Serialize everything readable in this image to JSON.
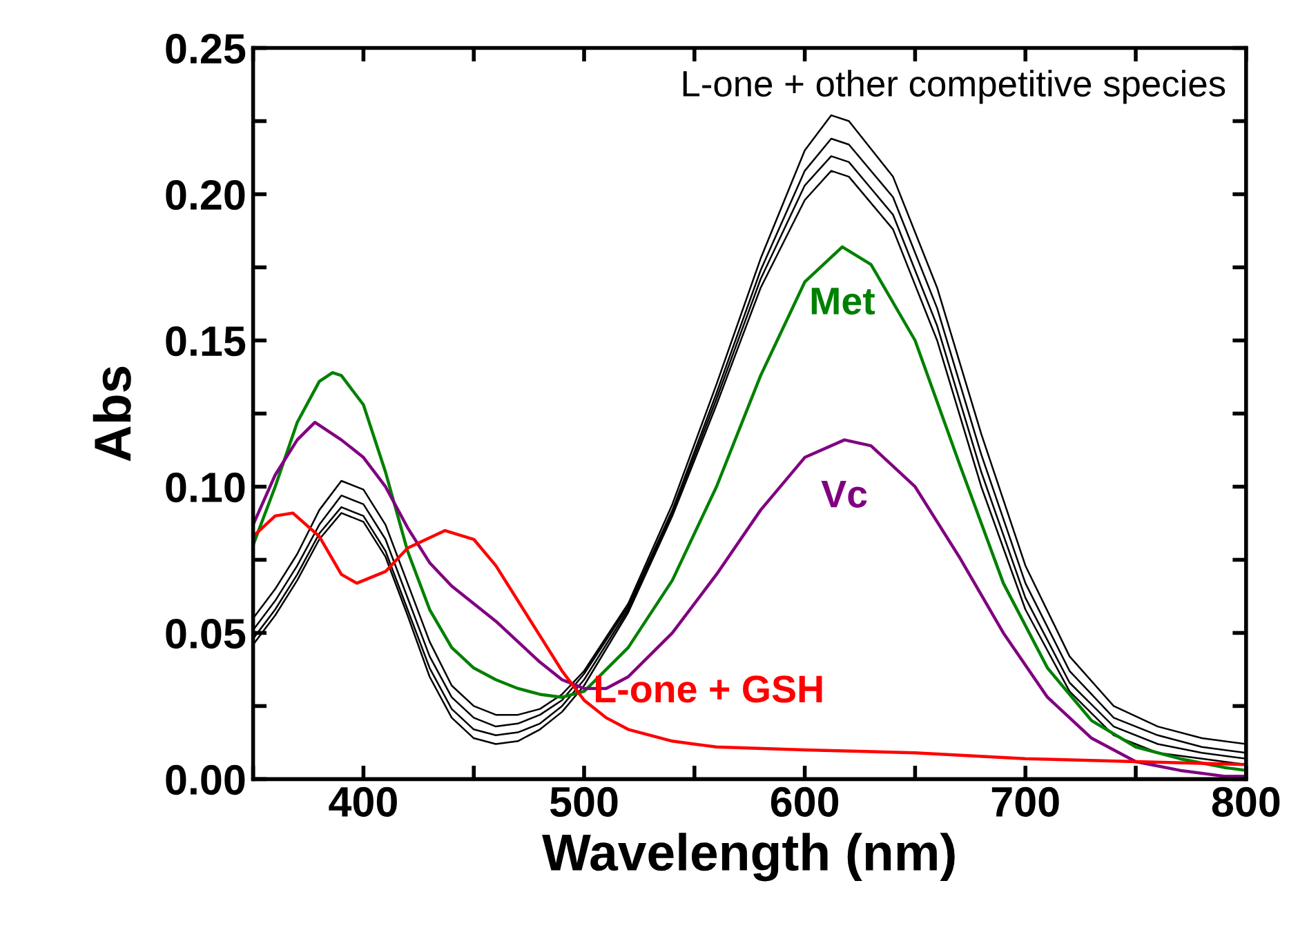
{
  "chart_data": {
    "type": "line",
    "xlabel": "Wavelength (nm)",
    "ylabel": "Abs",
    "xlim": [
      350,
      800
    ],
    "ylim": [
      0,
      0.25
    ],
    "xticks": [
      {
        "value": 350,
        "label": null
      },
      400,
      {
        "value": 450,
        "label": null
      },
      500,
      {
        "value": 550,
        "label": null
      },
      600,
      {
        "value": 650,
        "label": null
      },
      700,
      {
        "value": 750,
        "label": null
      },
      800
    ],
    "yticks": [
      {
        "value": 0,
        "label": "0.00"
      },
      {
        "value": 0.025,
        "label": null
      },
      {
        "value": 0.05,
        "label": "0.05"
      },
      {
        "value": 0.075,
        "label": null
      },
      {
        "value": 0.1,
        "label": "0.10"
      },
      {
        "value": 0.125,
        "label": null
      },
      {
        "value": 0.15,
        "label": "0.15"
      },
      {
        "value": 0.175,
        "label": null
      },
      {
        "value": 0.2,
        "label": "0.20"
      },
      {
        "value": 0.225,
        "label": null
      },
      {
        "value": 0.25,
        "label": "0.25"
      }
    ],
    "grid": false,
    "legend": false,
    "marker": "none",
    "line_style": "solid",
    "series": [
      {
        "color": "#000000",
        "x": [
          350,
          360,
          370,
          380,
          390,
          400,
          410,
          420,
          430,
          440,
          450,
          460,
          470,
          480,
          490,
          500,
          520,
          540,
          560,
          580,
          600,
          612,
          620,
          640,
          660,
          680,
          700,
          720,
          740,
          760,
          780,
          800
        ],
        "values": [
          0.046,
          0.056,
          0.068,
          0.082,
          0.091,
          0.088,
          0.076,
          0.056,
          0.035,
          0.021,
          0.014,
          0.012,
          0.013,
          0.017,
          0.023,
          0.032,
          0.057,
          0.09,
          0.128,
          0.168,
          0.198,
          0.208,
          0.206,
          0.188,
          0.15,
          0.1,
          0.058,
          0.03,
          0.015,
          0.009,
          0.007,
          0.005
        ]
      },
      {
        "color": "#000000",
        "x": [
          350,
          360,
          370,
          380,
          390,
          400,
          410,
          420,
          430,
          440,
          450,
          460,
          470,
          480,
          490,
          500,
          520,
          540,
          560,
          580,
          600,
          612,
          620,
          640,
          660,
          680,
          700,
          720,
          740,
          760,
          780,
          800
        ],
        "values": [
          0.048,
          0.058,
          0.07,
          0.084,
          0.093,
          0.09,
          0.078,
          0.058,
          0.038,
          0.024,
          0.017,
          0.015,
          0.016,
          0.019,
          0.025,
          0.034,
          0.058,
          0.091,
          0.13,
          0.171,
          0.203,
          0.213,
          0.211,
          0.193,
          0.155,
          0.105,
          0.062,
          0.033,
          0.018,
          0.012,
          0.009,
          0.007
        ]
      },
      {
        "color": "#000000",
        "x": [
          350,
          360,
          370,
          380,
          390,
          400,
          410,
          420,
          430,
          440,
          450,
          460,
          470,
          480,
          490,
          500,
          520,
          540,
          560,
          580,
          600,
          612,
          620,
          640,
          660,
          680,
          700,
          720,
          740,
          760,
          780,
          800
        ],
        "values": [
          0.051,
          0.061,
          0.073,
          0.087,
          0.097,
          0.094,
          0.082,
          0.062,
          0.042,
          0.028,
          0.021,
          0.018,
          0.019,
          0.022,
          0.027,
          0.036,
          0.059,
          0.092,
          0.132,
          0.174,
          0.208,
          0.219,
          0.217,
          0.199,
          0.161,
          0.111,
          0.067,
          0.037,
          0.021,
          0.015,
          0.011,
          0.009
        ]
      },
      {
        "color": "#000000",
        "x": [
          350,
          360,
          370,
          380,
          390,
          400,
          410,
          420,
          430,
          440,
          450,
          460,
          470,
          480,
          490,
          500,
          520,
          540,
          560,
          580,
          600,
          612,
          620,
          640,
          660,
          680,
          700,
          720,
          740,
          760,
          780,
          800
        ],
        "values": [
          0.055,
          0.065,
          0.077,
          0.092,
          0.102,
          0.099,
          0.087,
          0.067,
          0.047,
          0.032,
          0.025,
          0.022,
          0.022,
          0.024,
          0.029,
          0.037,
          0.06,
          0.094,
          0.135,
          0.178,
          0.215,
          0.227,
          0.225,
          0.206,
          0.168,
          0.118,
          0.073,
          0.042,
          0.025,
          0.018,
          0.014,
          0.012
        ]
      },
      {
        "name": "Met",
        "color": "#008000",
        "x": [
          350,
          360,
          370,
          380,
          386,
          390,
          400,
          410,
          420,
          430,
          440,
          450,
          460,
          470,
          480,
          490,
          500,
          520,
          540,
          560,
          580,
          600,
          617,
          630,
          650,
          670,
          690,
          710,
          730,
          750,
          770,
          790,
          800
        ],
        "values": [
          0.08,
          0.1,
          0.122,
          0.136,
          0.139,
          0.138,
          0.128,
          0.105,
          0.078,
          0.058,
          0.045,
          0.038,
          0.034,
          0.031,
          0.029,
          0.028,
          0.03,
          0.045,
          0.068,
          0.1,
          0.138,
          0.17,
          0.182,
          0.176,
          0.15,
          0.108,
          0.067,
          0.038,
          0.02,
          0.011,
          0.007,
          0.004,
          0.003
        ]
      },
      {
        "name": "Vc",
        "color": "#800080",
        "x": [
          350,
          360,
          370,
          378,
          390,
          400,
          410,
          420,
          430,
          440,
          450,
          460,
          470,
          480,
          490,
          500,
          510,
          520,
          540,
          560,
          580,
          600,
          618,
          630,
          650,
          670,
          690,
          710,
          730,
          750,
          770,
          790,
          800
        ],
        "values": [
          0.087,
          0.104,
          0.116,
          0.122,
          0.116,
          0.11,
          0.1,
          0.086,
          0.074,
          0.066,
          0.06,
          0.054,
          0.047,
          0.04,
          0.034,
          0.031,
          0.031,
          0.035,
          0.05,
          0.07,
          0.092,
          0.11,
          0.116,
          0.114,
          0.1,
          0.076,
          0.05,
          0.028,
          0.014,
          0.006,
          0.003,
          0.001,
          0.001
        ]
      },
      {
        "name": "L-one + GSH",
        "color": "#ff0000",
        "x": [
          350,
          360,
          368,
          380,
          390,
          397,
          410,
          420,
          437,
          450,
          460,
          470,
          480,
          490,
          500,
          510,
          520,
          540,
          560,
          600,
          650,
          700,
          750,
          800
        ],
        "values": [
          0.083,
          0.09,
          0.091,
          0.083,
          0.07,
          0.067,
          0.071,
          0.079,
          0.085,
          0.082,
          0.073,
          0.061,
          0.049,
          0.037,
          0.027,
          0.021,
          0.017,
          0.013,
          0.011,
          0.01,
          0.009,
          0.007,
          0.006,
          0.005
        ]
      }
    ],
    "annotations": [
      "L-one + other competitive species"
    ]
  }
}
